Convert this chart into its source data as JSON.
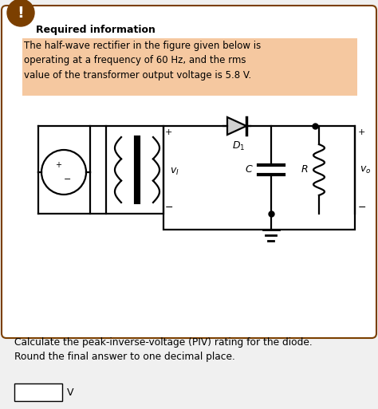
{
  "title": "Required information",
  "highlighted_text": "The half-wave rectifier in the figure given below is\noperating at a frequency of 60 Hz, and the rms\nvalue of the transformer output voltage is 5.8 V.",
  "question_text": "Calculate the peak-inverse-voltage (PIV) rating for the diode.\nRound the final answer to one decimal place.",
  "answer_label": "V",
  "bg_color": "#f0f0f0",
  "card_bg": "#ffffff",
  "highlight_color": "#f5c8a0",
  "border_color": "#7B3F00",
  "warning_bg": "#7B3F00",
  "warning_text": "!",
  "title_color": "#000000",
  "text_color": "#000000",
  "fig_width": 4.74,
  "fig_height": 5.13
}
